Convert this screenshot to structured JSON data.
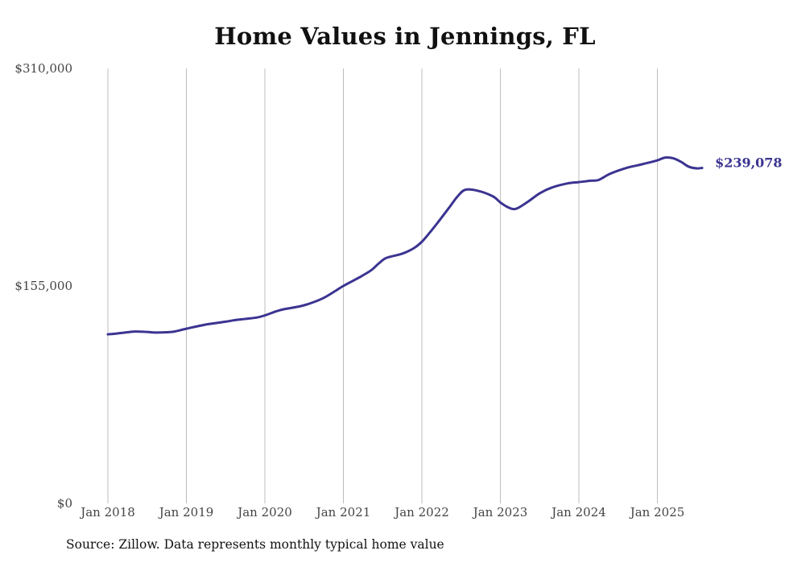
{
  "chart_data": {
    "type": "line",
    "title": "Home Values in Jennings, FL",
    "xlabel": "",
    "ylabel": "",
    "ylim": [
      0,
      310000
    ],
    "y_ticks": [
      {
        "value": 0,
        "label": "$0"
      },
      {
        "value": 155000,
        "label": "$155,000"
      },
      {
        "value": 310000,
        "label": "$310,000"
      }
    ],
    "x_ticks": [
      {
        "value": 2018.0,
        "label": "Jan 2018"
      },
      {
        "value": 2019.0,
        "label": "Jan 2019"
      },
      {
        "value": 2020.0,
        "label": "Jan 2020"
      },
      {
        "value": 2021.0,
        "label": "Jan 2021"
      },
      {
        "value": 2022.0,
        "label": "Jan 2022"
      },
      {
        "value": 2023.0,
        "label": "Jan 2023"
      },
      {
        "value": 2024.0,
        "label": "Jan 2024"
      },
      {
        "value": 2025.0,
        "label": "Jan 2025"
      }
    ],
    "grid": "vertical",
    "series": [
      {
        "name": "Typical home value",
        "color": "#3b3491",
        "x": [
          2018.0,
          2018.1,
          2018.25,
          2018.35,
          2018.5,
          2018.6,
          2018.75,
          2018.85,
          2019.0,
          2019.25,
          2019.5,
          2019.6,
          2019.75,
          2019.9,
          2020.0,
          2020.15,
          2020.25,
          2020.45,
          2020.6,
          2020.75,
          2020.9,
          2021.0,
          2021.2,
          2021.35,
          2021.45,
          2021.55,
          2021.75,
          2021.9,
          2022.0,
          2022.1,
          2022.2,
          2022.35,
          2022.45,
          2022.55,
          2022.7,
          2022.9,
          2023.0,
          2023.1,
          2023.2,
          2023.35,
          2023.5,
          2023.65,
          2023.85,
          2024.0,
          2024.15,
          2024.25,
          2024.4,
          2024.6,
          2024.75,
          2024.9,
          2025.0,
          2025.1,
          2025.2,
          2025.3,
          2025.4,
          2025.5,
          2025.57
        ],
        "values": [
          120500,
          121000,
          122000,
          122500,
          122200,
          121800,
          122000,
          122500,
          124500,
          127500,
          129500,
          130500,
          131500,
          132500,
          134000,
          137000,
          138500,
          140500,
          143000,
          146500,
          151500,
          155000,
          161000,
          166000,
          171000,
          175000,
          178000,
          182000,
          186500,
          193000,
          200000,
          211000,
          218500,
          223500,
          223000,
          219000,
          214500,
          211000,
          210000,
          215000,
          221000,
          225000,
          228000,
          229000,
          230000,
          230500,
          235000,
          239000,
          241000,
          243000,
          244500,
          246500,
          246000,
          243500,
          240000,
          238800,
          239078
        ]
      }
    ],
    "end_label": "$239,078"
  },
  "footer": {
    "source": "Source: Zillow. Data represents monthly typical home value"
  }
}
